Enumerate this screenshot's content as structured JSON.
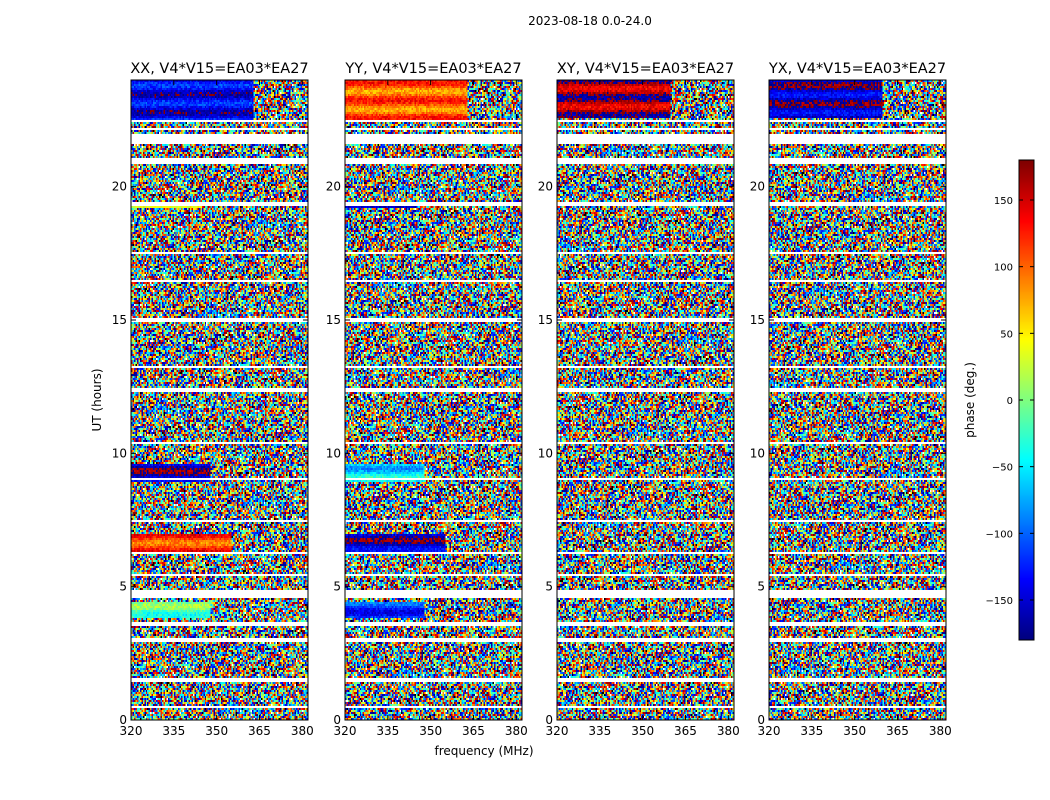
{
  "figure_title": "2023-08-18 0.0-24.0",
  "chart_data": {
    "type": "heatmap",
    "title": "2023-08-18 0.0-24.0",
    "xlabel": "frequency (MHz)",
    "ylabel": "UT (hours)",
    "xlim": [
      320,
      382
    ],
    "ylim": [
      0,
      24
    ],
    "xticks": [
      320,
      335,
      350,
      365,
      380
    ],
    "yticks": [
      0,
      5,
      10,
      15,
      20
    ],
    "panels": [
      {
        "title": "XX, V4*V15=EA03*EA27",
        "pol": "XX"
      },
      {
        "title": "YY, V4*V15=EA03*EA27",
        "pol": "YY"
      },
      {
        "title": "XY, V4*V15=EA03*EA27",
        "pol": "XY"
      },
      {
        "title": "YX, V4*V15=EA03*EA27",
        "pol": "YX"
      }
    ],
    "colorbar": {
      "label": "phase (deg.)",
      "range": [
        -180,
        180
      ],
      "ticks": [
        -150,
        -100,
        -50,
        0,
        50,
        100,
        150
      ],
      "colormap": "jet"
    },
    "flagged_hours": [
      [
        0.45,
        0.55
      ],
      [
        1.45,
        1.6
      ],
      [
        2.9,
        3.05
      ],
      [
        3.55,
        3.7
      ],
      [
        4.55,
        4.9
      ],
      [
        5.4,
        5.48
      ],
      [
        6.25,
        6.33
      ],
      [
        7.4,
        7.47
      ],
      [
        9.0,
        9.08
      ],
      [
        10.35,
        10.43
      ],
      [
        12.3,
        12.45
      ],
      [
        13.2,
        13.27
      ],
      [
        14.9,
        15.05
      ],
      [
        16.4,
        16.47
      ],
      [
        17.5,
        17.57
      ],
      [
        19.3,
        19.4
      ],
      [
        20.85,
        21.05
      ],
      [
        21.6,
        22.0
      ],
      [
        22.15,
        22.22
      ],
      [
        22.4,
        22.5
      ]
    ],
    "strong_signal_bands": [
      {
        "hours": [
          22.5,
          24.0
        ],
        "pols": [
          "XX",
          "YY"
        ],
        "freq_max": 363
      },
      {
        "hours": [
          6.3,
          6.95
        ],
        "pols": [
          "XX",
          "YY"
        ],
        "freq_max": 355
      },
      {
        "hours": [
          8.9,
          9.6
        ],
        "pols": [
          "XX",
          "YY"
        ],
        "freq_max": 348
      },
      {
        "hours": [
          3.8,
          4.4
        ],
        "pols": [
          "XX",
          "YY"
        ],
        "freq_max": 348
      },
      {
        "hours": [
          19.2,
          19.4
        ],
        "pols": [
          "XX",
          "YY"
        ],
        "freq_max": 345
      },
      {
        "hours": [
          22.6,
          24.0
        ],
        "pols": [
          "XY",
          "YX"
        ],
        "freq_max": 360
      }
    ]
  }
}
